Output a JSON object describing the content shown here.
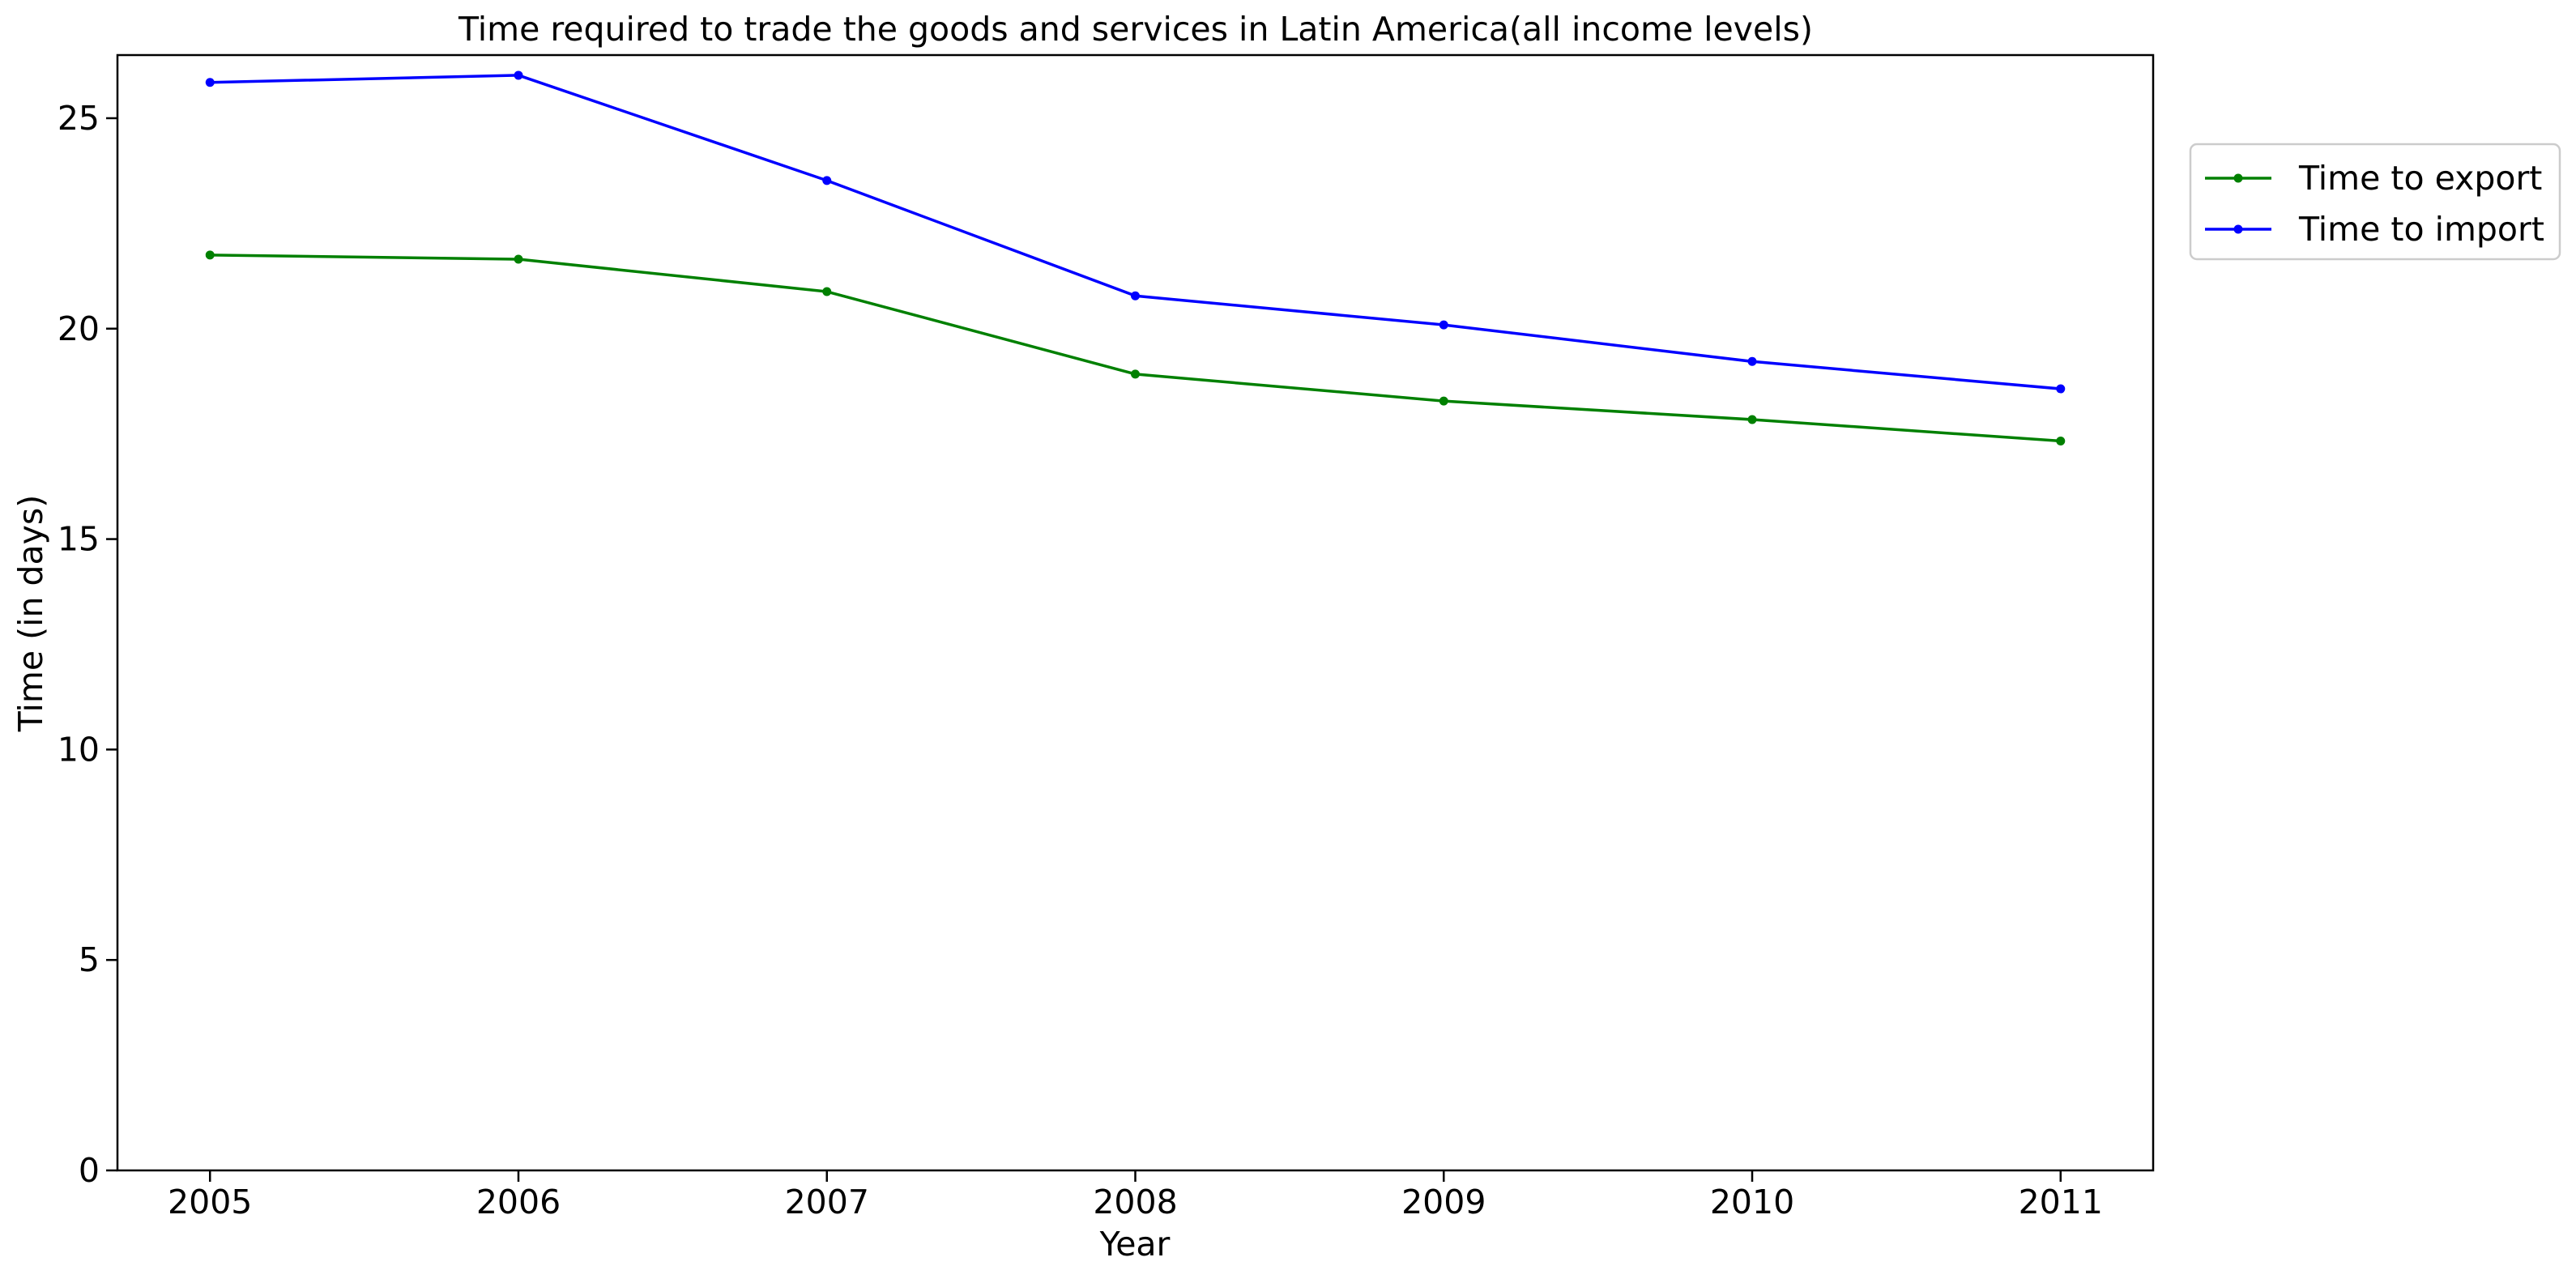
{
  "chart_data": {
    "type": "line",
    "title": "Time required to trade the goods and services in Latin America(all income levels)",
    "xlabel": "Year",
    "ylabel": "Time (in days)",
    "x": [
      2005,
      2006,
      2007,
      2008,
      2009,
      2010,
      2011
    ],
    "xlim": [
      2004.7,
      2011.3
    ],
    "ylim": [
      0,
      26.5
    ],
    "yticks": [
      0,
      5,
      10,
      15,
      20,
      25
    ],
    "grid": false,
    "legend_position": "outside-right-top",
    "series": [
      {
        "name": "Time to export",
        "color": "#008000",
        "values": [
          21.75,
          21.65,
          20.88,
          18.92,
          18.28,
          17.84,
          17.33
        ]
      },
      {
        "name": "Time to import",
        "color": "#0000ff",
        "values": [
          25.85,
          26.02,
          23.52,
          20.78,
          20.09,
          19.22,
          18.57
        ]
      }
    ]
  }
}
